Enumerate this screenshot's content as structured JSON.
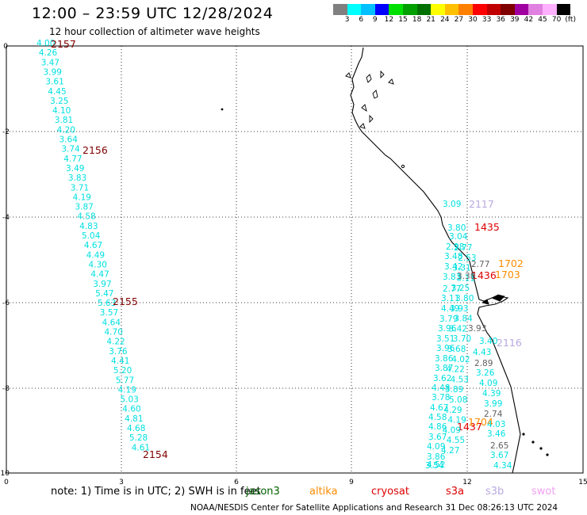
{
  "title": "12:00 – 23:59 UTC 12/28/2024",
  "subtitle": "12 hour collection of altimeter wave heights",
  "legend": {
    "colors": [
      "#808080",
      "#00ffff",
      "#00c0ff",
      "#0000ff",
      "#00e000",
      "#00a000",
      "#007000",
      "#ffff00",
      "#ffc000",
      "#ff8000",
      "#ff0000",
      "#c00000",
      "#800000",
      "#a000a0",
      "#e080e0",
      "#ffb0ff",
      "#000000"
    ],
    "labels": [
      "3",
      "6",
      "9",
      "12",
      "15",
      "18",
      "21",
      "24",
      "27",
      "30",
      "33",
      "36",
      "39",
      "42",
      "45",
      "70",
      "(ft)"
    ]
  },
  "axes": {
    "x_ticks": [
      "0",
      "3",
      "6",
      "9",
      "12",
      "15"
    ],
    "y_ticks": [
      "0",
      "-2",
      "-4",
      "-6",
      "-8",
      "-10"
    ]
  },
  "colors": {
    "swh": "#00e0e0",
    "grey_track": "#606060",
    "time_red": "#800000",
    "jason": "#006000",
    "altika": "#ff8c00",
    "cryosat": "#e00000",
    "s3b": "#b8a8e0",
    "swot": "#f0a0f0"
  },
  "tracks": {
    "track1": {
      "values": [
        "4.00",
        "4.26",
        "3.47",
        "3.99",
        "3.61",
        "4.45",
        "3.25",
        "4.10",
        "3.81",
        "4.20",
        "3.64",
        "3.74",
        "4.77",
        "3.49",
        "3.83",
        "3.71",
        "4.19",
        "3.87",
        "4.58",
        "4.83",
        "5.04",
        "4.67",
        "4.49",
        "4.30",
        "4.47",
        "3.97",
        "5.47",
        "5.63",
        "3.57",
        "4.64",
        "4.70",
        "4.22",
        "3.76",
        "4.41",
        "5.20",
        "5.77",
        "4.19",
        "5.03",
        "4.60",
        "4.81",
        "4.68",
        "5.28",
        "4.61"
      ],
      "times": [
        "2157",
        "2156",
        "2155",
        "2154"
      ]
    },
    "track2": {
      "values": [
        "3.09",
        "3.80",
        "3.04",
        "2.98",
        "3.48",
        "3.42",
        "3.83",
        "2.77",
        "3.11",
        "4.49",
        "3.79",
        "3.96",
        "3.51",
        "3.96",
        "3.86",
        "3.87",
        "3.62",
        "4.48",
        "3.78",
        "4.67",
        "4.58",
        "4.86",
        "3.67",
        "4.09",
        "3.86",
        "4.52",
        "3.54"
      ],
      "times": [
        "2117",
        "2116",
        "1435",
        "1436",
        "1437"
      ]
    },
    "track3": {
      "values": [
        "2.77",
        "2.53",
        "3.31",
        "3.11",
        "3.25",
        "3.80",
        "3.93",
        "3.84",
        "3.42",
        "3.70",
        "3.68",
        "4.02",
        "4.22",
        "4.53",
        "3.89",
        "5.08",
        "4.29",
        "4.19",
        "4.09",
        "4.55",
        "4.27"
      ],
      "grey": [
        "2.77",
        "3.38",
        "3.93",
        "2.89",
        "2.74",
        "2.65"
      ],
      "times": [
        "1702",
        "1703",
        "1704"
      ]
    },
    "track4": {
      "values": [
        "3.40",
        "4.43",
        "3.26",
        "4.09",
        "4.39",
        "3.99",
        "4.03",
        "3.46",
        "3.67",
        "4.34"
      ]
    }
  },
  "note": {
    "prefix": "note:  1) Time is in UTC; 2) SWH is in feet",
    "sat_jason": "jason3",
    "sat_altika": "altika",
    "sat_cryosat": "cryosat",
    "sat_s3a": "s3a",
    "sat_s3b": "s3b",
    "sat_swot": "swot"
  },
  "footer": "NOAA/NESDIS Center for Satellite Applications and Research    31 Dec 08:26:13 UTC 2024"
}
